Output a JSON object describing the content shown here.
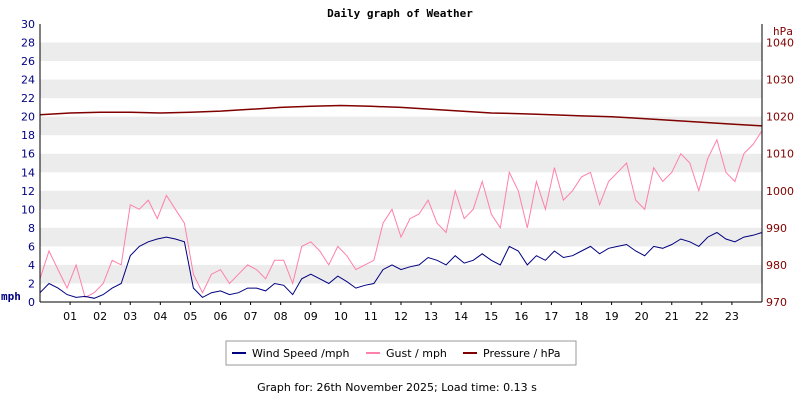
{
  "chart_data": {
    "type": "line",
    "title": "Daily graph of Weather",
    "left_axis": {
      "label": "mph",
      "range": [
        0,
        30
      ],
      "ticks": [
        "0",
        "2",
        "4",
        "6",
        "8",
        "10",
        "12",
        "14",
        "16",
        "18",
        "20",
        "22",
        "24",
        "26",
        "28",
        "30"
      ],
      "color": "#000080"
    },
    "right_axis": {
      "label": "hPa",
      "range": [
        970,
        1045
      ],
      "ticks": [
        "970",
        "980",
        "990",
        "1000",
        "1010",
        "1020",
        "1030",
        "1040"
      ],
      "color": "#800000"
    },
    "x_axis": {
      "range_hours": [
        0,
        24
      ],
      "ticks": [
        "01",
        "02",
        "03",
        "04",
        "05",
        "06",
        "07",
        "08",
        "09",
        "10",
        "11",
        "12",
        "13",
        "14",
        "15",
        "16",
        "17",
        "18",
        "19",
        "20",
        "21",
        "22",
        "23"
      ]
    },
    "grid": "horizontal alternating bands",
    "legend": {
      "placement": "bottom-center",
      "entries": [
        {
          "label": "Wind Speed /mph",
          "color": "#000080"
        },
        {
          "label": "Gust / mph",
          "color": "#ff80a8"
        },
        {
          "label": "Pressure / hPa",
          "color": "#800000"
        }
      ]
    },
    "series": [
      {
        "name": "Wind Speed /mph",
        "axis": "left",
        "color": "#000080",
        "hours": [
          0,
          0.3,
          0.6,
          0.9,
          1.2,
          1.5,
          1.8,
          2.1,
          2.4,
          2.7,
          3.0,
          3.3,
          3.6,
          3.9,
          4.2,
          4.5,
          4.8,
          5.1,
          5.4,
          5.7,
          6.0,
          6.3,
          6.6,
          6.9,
          7.2,
          7.5,
          7.8,
          8.1,
          8.4,
          8.7,
          9.0,
          9.3,
          9.6,
          9.9,
          10.2,
          10.5,
          10.8,
          11.1,
          11.4,
          11.7,
          12.0,
          12.3,
          12.6,
          12.9,
          13.2,
          13.5,
          13.8,
          14.1,
          14.4,
          14.7,
          15.0,
          15.3,
          15.6,
          15.9,
          16.2,
          16.5,
          16.8,
          17.1,
          17.4,
          17.7,
          18.0,
          18.3,
          18.6,
          18.9,
          19.2,
          19.5,
          19.8,
          20.1,
          20.4,
          20.7,
          21.0,
          21.3,
          21.6,
          21.9,
          22.2,
          22.5,
          22.8,
          23.1,
          23.4,
          23.7,
          24.0
        ],
        "values": [
          1.0,
          2.0,
          1.5,
          0.8,
          0.5,
          0.6,
          0.4,
          0.8,
          1.5,
          2.0,
          5.0,
          6.0,
          6.5,
          6.8,
          7.0,
          6.8,
          6.5,
          1.5,
          0.5,
          1.0,
          1.2,
          0.8,
          1.0,
          1.5,
          1.5,
          1.2,
          2.0,
          1.8,
          0.8,
          2.5,
          3.0,
          2.5,
          2.0,
          2.8,
          2.2,
          1.5,
          1.8,
          2.0,
          3.5,
          4.0,
          3.5,
          3.8,
          4.0,
          4.8,
          4.5,
          4.0,
          5.0,
          4.2,
          4.5,
          5.2,
          4.5,
          4.0,
          6.0,
          5.5,
          4.0,
          5.0,
          4.5,
          5.5,
          4.8,
          5.0,
          5.5,
          6.0,
          5.2,
          5.8,
          6.0,
          6.2,
          5.5,
          5.0,
          6.0,
          5.8,
          6.2,
          6.8,
          6.5,
          6.0,
          7.0,
          7.5,
          6.8,
          6.5,
          7.0,
          7.2,
          7.5
        ]
      },
      {
        "name": "Gust / mph",
        "axis": "left",
        "color": "#ff80a8",
        "hours": [
          0,
          0.3,
          0.6,
          0.9,
          1.2,
          1.5,
          1.8,
          2.1,
          2.4,
          2.7,
          3.0,
          3.3,
          3.6,
          3.9,
          4.2,
          4.5,
          4.8,
          5.1,
          5.4,
          5.7,
          6.0,
          6.3,
          6.6,
          6.9,
          7.2,
          7.5,
          7.8,
          8.1,
          8.4,
          8.7,
          9.0,
          9.3,
          9.6,
          9.9,
          10.2,
          10.5,
          10.8,
          11.1,
          11.4,
          11.7,
          12.0,
          12.3,
          12.6,
          12.9,
          13.2,
          13.5,
          13.8,
          14.1,
          14.4,
          14.7,
          15.0,
          15.3,
          15.6,
          15.9,
          16.2,
          16.5,
          16.8,
          17.1,
          17.4,
          17.7,
          18.0,
          18.3,
          18.6,
          18.9,
          19.2,
          19.5,
          19.8,
          20.1,
          20.4,
          20.7,
          21.0,
          21.3,
          21.6,
          21.9,
          22.2,
          22.5,
          22.8,
          23.1,
          23.4,
          23.7,
          24.0
        ],
        "values": [
          2.5,
          5.5,
          3.5,
          1.5,
          4.0,
          0.5,
          1.0,
          2.0,
          4.5,
          4.0,
          10.5,
          10.0,
          11.0,
          9.0,
          11.5,
          10.0,
          8.5,
          3.0,
          1.0,
          3.0,
          3.5,
          2.0,
          3.0,
          4.0,
          3.5,
          2.5,
          4.5,
          4.5,
          2.0,
          6.0,
          6.5,
          5.5,
          4.0,
          6.0,
          5.0,
          3.5,
          4.0,
          4.5,
          8.5,
          10.0,
          7.0,
          9.0,
          9.5,
          11.0,
          8.5,
          7.5,
          12.0,
          9.0,
          10.0,
          13.0,
          9.5,
          8.0,
          14.0,
          12.0,
          8.0,
          13.0,
          10.0,
          14.5,
          11.0,
          12.0,
          13.5,
          14.0,
          10.5,
          13.0,
          14.0,
          15.0,
          11.0,
          10.0,
          14.5,
          13.0,
          14.0,
          16.0,
          15.0,
          12.0,
          15.5,
          17.5,
          14.0,
          13.0,
          16.0,
          17.0,
          18.5
        ]
      },
      {
        "name": "Pressure / hPa",
        "axis": "right",
        "color": "#800000",
        "hours": [
          0,
          1,
          2,
          3,
          4,
          5,
          6,
          7,
          8,
          9,
          10,
          11,
          12,
          13,
          14,
          15,
          16,
          17,
          18,
          19,
          20,
          21,
          22,
          23,
          24
        ],
        "values": [
          1020.5,
          1021.0,
          1021.2,
          1021.2,
          1021.0,
          1021.2,
          1021.5,
          1022.0,
          1022.5,
          1022.8,
          1023.0,
          1022.8,
          1022.5,
          1022.0,
          1021.5,
          1021.0,
          1020.8,
          1020.5,
          1020.2,
          1020.0,
          1019.5,
          1019.0,
          1018.5,
          1018.0,
          1017.5
        ]
      }
    ]
  },
  "footer": {
    "text": "Graph for: 26th November 2025; Load time: 0.13 s"
  }
}
